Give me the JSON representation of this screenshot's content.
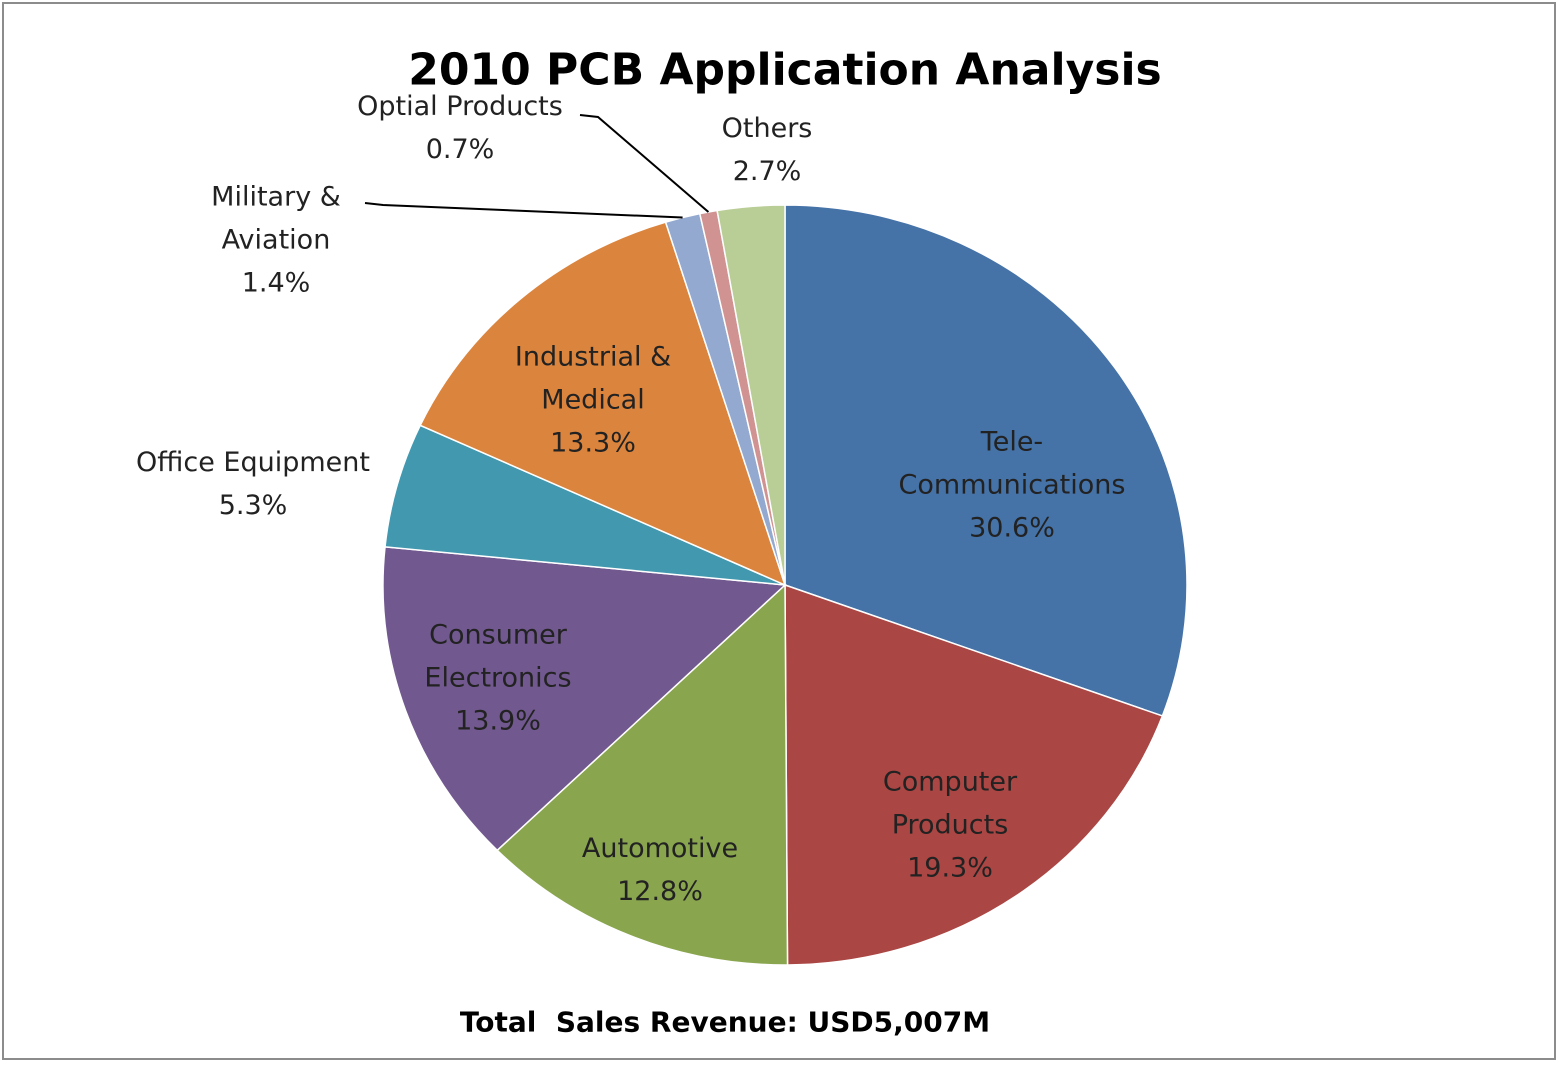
{
  "chart_data": {
    "type": "pie",
    "title": "2010 PCB Application Analysis",
    "subtitle": "Total  Sales Revenue: USD5,007M",
    "categories": [
      "Tele-\nCommunications",
      "Computer\nProducts",
      "Automotive",
      "Consumer\nElectronics",
      "Office Equipment",
      "Industrial &\nMedical",
      "Military &\nAviation",
      "Optial Products",
      "Others"
    ],
    "values": [
      30.6,
      19.3,
      12.8,
      13.9,
      5.3,
      13.3,
      1.4,
      0.7,
      2.7
    ],
    "value_labels": [
      "30.6%",
      "19.3%",
      "12.8%",
      "13.9%",
      "5.3%",
      "13.3%",
      "1.4%",
      "0.7%",
      "2.7%"
    ],
    "colors": [
      "#4572a7",
      "#aa4643",
      "#89a54e",
      "#71588f",
      "#4198af",
      "#db843d",
      "#93a9cf",
      "#d19392",
      "#b9cd96"
    ]
  }
}
